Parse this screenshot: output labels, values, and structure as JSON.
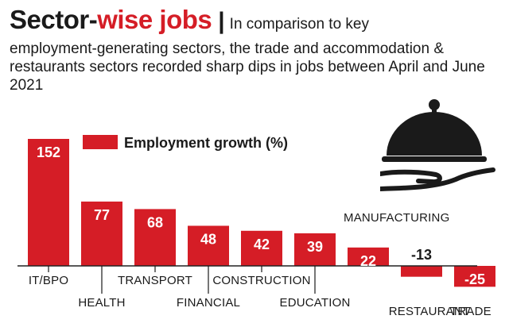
{
  "header": {
    "title_part1": "Sector-",
    "title_part2": "wise jobs",
    "separator": "|",
    "subtitle_first": "In comparison to key",
    "subtitle_rest": "employment-generating sectors, the trade and accommodation & restaurants sectors recorded sharp dips in jobs between April and June 2021"
  },
  "colors": {
    "bar": "#d51d26",
    "text": "#1a1a1a",
    "accent": "#d51d26",
    "baseline": "#222222"
  },
  "icons": [
    "cloche-icon"
  ],
  "chart_data": {
    "type": "bar",
    "title": "Sector-wise jobs",
    "categories": [
      "IT/BPO",
      "HEALTH",
      "TRANSPORT",
      "FINANCIAL",
      "CONSTRUCTION",
      "EDUCATION",
      "MANUFACTURING",
      "RESTAURANT",
      "TRADE"
    ],
    "series": [
      {
        "name": "Employment growth (%)",
        "values": [
          152,
          77,
          68,
          48,
          42,
          39,
          22,
          -13,
          -25
        ]
      }
    ],
    "xlabel": "",
    "ylabel": "",
    "ylim": [
      -25,
      152
    ],
    "grid": false,
    "legend": "top-left"
  }
}
